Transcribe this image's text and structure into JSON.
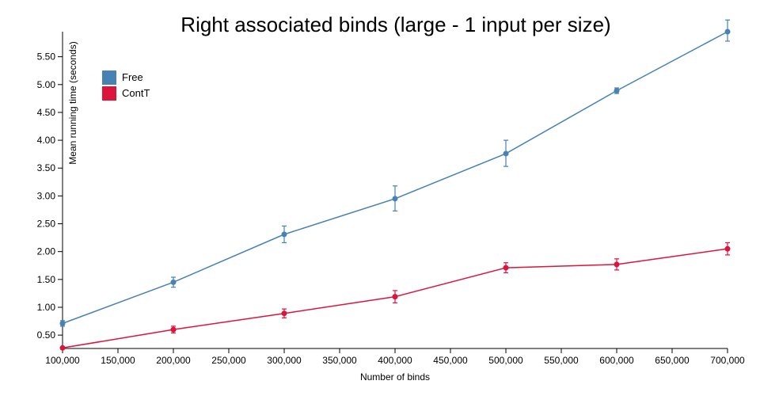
{
  "chart_data": {
    "type": "line",
    "title": "Right associated binds (large - 1 input per size)",
    "xlabel": "Number of binds",
    "ylabel": "Mean running time (seconds)",
    "x": [
      100000,
      200000,
      300000,
      400000,
      500000,
      600000,
      700000
    ],
    "x_ticks": [
      "100,000",
      "150,000",
      "200,000",
      "250,000",
      "300,000",
      "350,000",
      "400,000",
      "450,000",
      "500,000",
      "550,000",
      "600,000",
      "650,000",
      "700,000"
    ],
    "x_tick_values": [
      100000,
      150000,
      200000,
      250000,
      300000,
      350000,
      400000,
      450000,
      500000,
      550000,
      600000,
      650000,
      700000
    ],
    "y_ticks": [
      "0.50",
      "1.00",
      "1.50",
      "2.00",
      "2.50",
      "3.00",
      "3.50",
      "4.00",
      "4.50",
      "5.00",
      "5.50"
    ],
    "y_tick_values": [
      0.5,
      1.0,
      1.5,
      2.0,
      2.5,
      3.0,
      3.5,
      4.0,
      4.5,
      5.0,
      5.5
    ],
    "xlim": [
      100000,
      700000
    ],
    "ylim": [
      0.26,
      5.95
    ],
    "legend_position": "top-left",
    "series": [
      {
        "name": "Free",
        "color": "#4682b4",
        "values": [
          0.71,
          1.45,
          2.31,
          2.95,
          3.76,
          4.89,
          5.95
        ],
        "err_low": [
          0.66,
          1.36,
          2.16,
          2.73,
          3.53,
          4.84,
          5.78
        ],
        "err_high": [
          0.76,
          1.54,
          2.46,
          3.18,
          4.0,
          4.94,
          6.16
        ]
      },
      {
        "name": "ContT",
        "color": "#dc143c",
        "values": [
          0.27,
          0.6,
          0.89,
          1.19,
          1.71,
          1.77,
          2.05
        ],
        "err_low": [
          0.26,
          0.54,
          0.81,
          1.08,
          1.62,
          1.67,
          1.94
        ],
        "err_high": [
          0.28,
          0.66,
          0.97,
          1.3,
          1.8,
          1.87,
          2.16
        ]
      }
    ]
  }
}
